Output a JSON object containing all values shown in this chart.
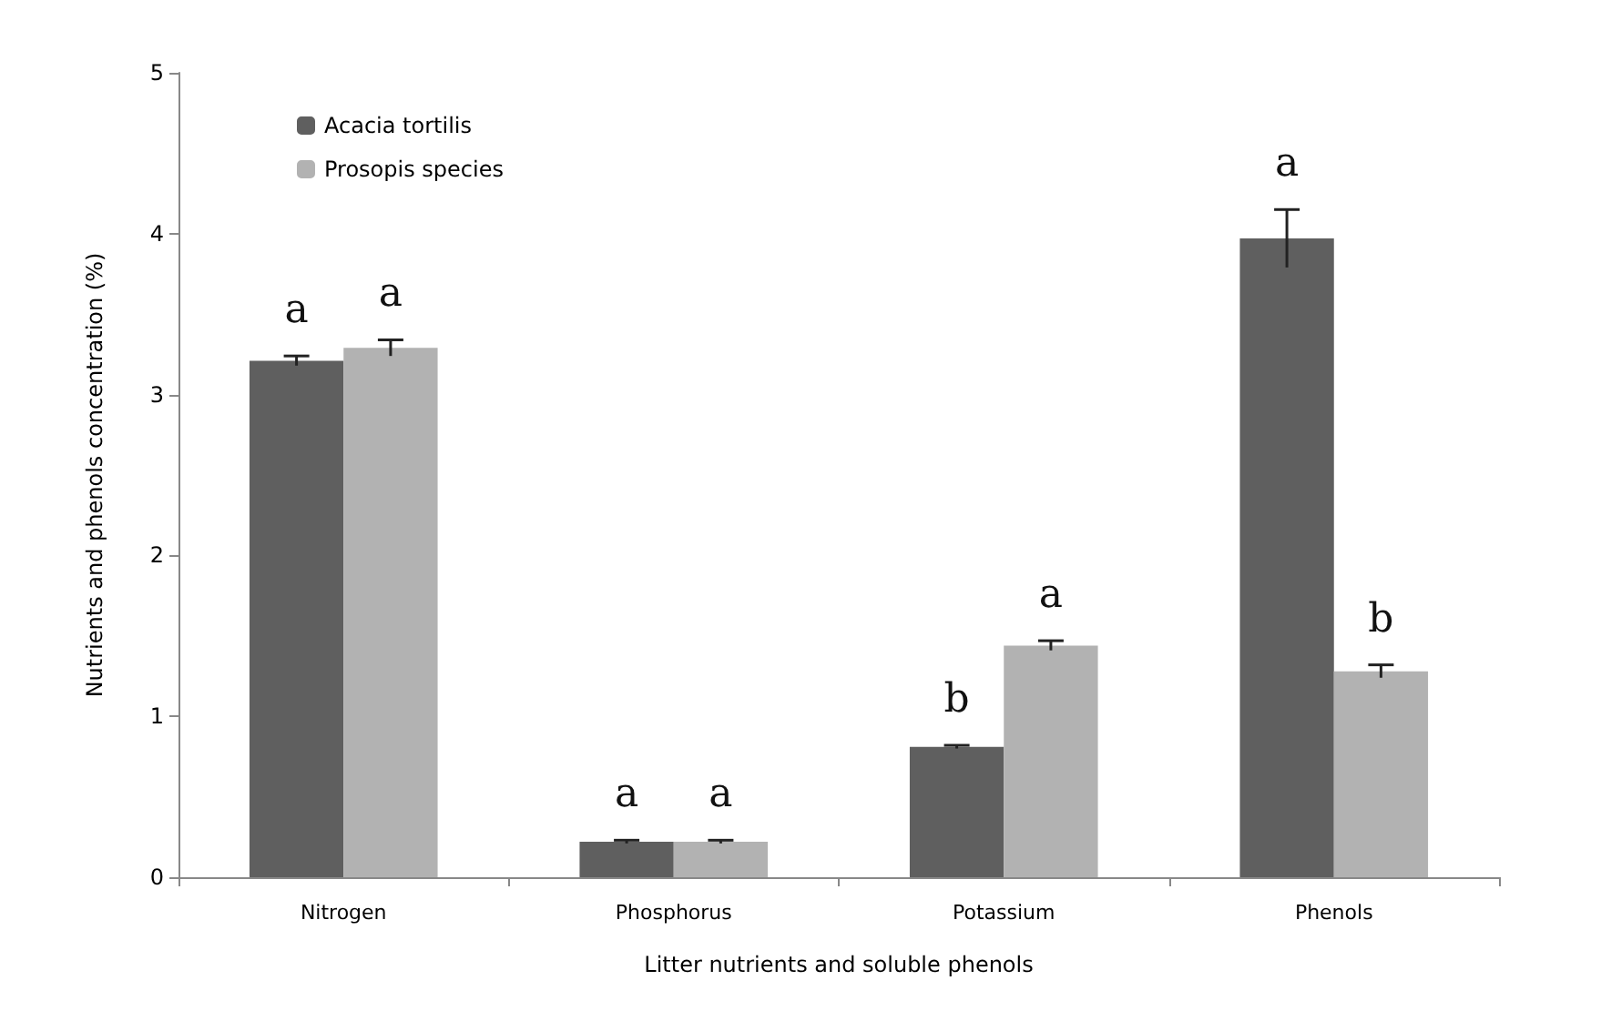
{
  "chart_data": {
    "type": "bar",
    "xlabel": "Litter nutrients and soluble phenols",
    "ylabel": "Nutrients and phenols concentration (%)",
    "categories": [
      "Nitrogen",
      "Phosphorus",
      "Potassium",
      "Phenols"
    ],
    "series": [
      {
        "name": "Acacia tortilis",
        "color": "#5f5f5f",
        "values": [
          3.21,
          0.22,
          0.81,
          3.97
        ],
        "errors": [
          0.03,
          0.01,
          0.01,
          0.18
        ],
        "value_labels": [
          "a",
          "a",
          "b",
          "a"
        ]
      },
      {
        "name": "Prosopis species",
        "color": "#b2b2b2",
        "values": [
          3.29,
          0.22,
          1.44,
          1.28
        ],
        "errors": [
          0.05,
          0.01,
          0.03,
          0.04
        ],
        "value_labels": [
          "a",
          "a",
          "a",
          "b"
        ]
      }
    ],
    "ylim": [
      0,
      5
    ],
    "yticks": [
      0,
      1,
      2,
      3,
      4,
      5
    ],
    "grid": false,
    "legend": "top left"
  }
}
